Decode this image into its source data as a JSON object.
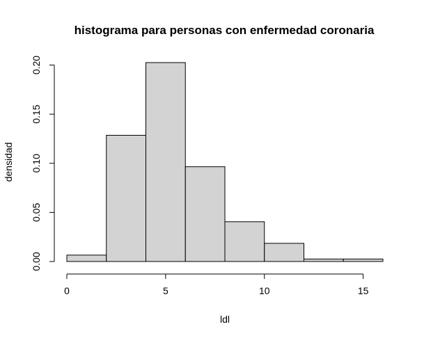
{
  "chart_data": {
    "type": "bar",
    "title": "histograma para personas con enfermedad coronaria",
    "xlabel": "ldl",
    "ylabel": "densidad",
    "bins": [
      {
        "from": 0,
        "to": 2,
        "density": 0.0065
      },
      {
        "from": 2,
        "to": 4,
        "density": 0.1285
      },
      {
        "from": 4,
        "to": 6,
        "density": 0.2025
      },
      {
        "from": 6,
        "to": 8,
        "density": 0.0965
      },
      {
        "from": 8,
        "to": 10,
        "density": 0.0405
      },
      {
        "from": 10,
        "to": 12,
        "density": 0.0185
      },
      {
        "from": 12,
        "to": 14,
        "density": 0.0025
      },
      {
        "from": 14,
        "to": 16,
        "density": 0.0025
      }
    ],
    "xlim": [
      0,
      16
    ],
    "ylim": [
      0,
      0.2025
    ],
    "xticks": [
      0,
      5,
      10,
      15
    ],
    "xtick_labels": [
      "0",
      "5",
      "10",
      "15"
    ],
    "yticks": [
      0,
      0.05,
      0.1,
      0.15,
      0.2
    ],
    "ytick_labels": [
      "0.00",
      "0.05",
      "0.10",
      "0.15",
      "0.20"
    ],
    "grid": false,
    "bar_fill": "#d3d3d3",
    "bar_stroke": "#000000"
  }
}
